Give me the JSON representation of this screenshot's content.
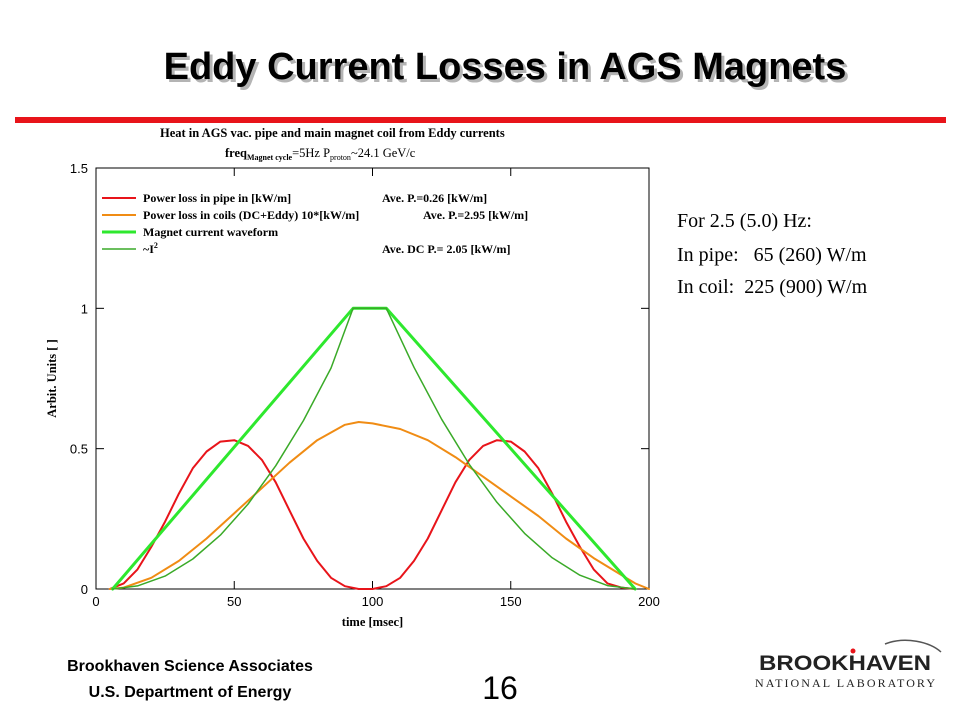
{
  "slide": {
    "title": "Eddy Current Losses in AGS Magnets",
    "notes": [
      "For 2.5 (5.0) Hz:",
      "In pipe:   65 (260) W/m",
      "In coil:  225 (900) W/m"
    ],
    "footer_org": "Brookhaven Science Associates",
    "footer_dept": "U.S. Department of Energy",
    "page_number": "16",
    "logo": {
      "line1": "BROOKHAVEN",
      "line2": "NATIONAL LABORATORY",
      "accent": "#e8141a"
    }
  },
  "colors": {
    "accent": "#e8141a",
    "title_shadow": "#b4b4b4"
  },
  "chart_data": {
    "type": "line",
    "title_line1": "Heat in AGS vac. pipe and main magnet coil from Eddy currents",
    "title_line2": {
      "prefix": "freq",
      "sub1": "Magnet cycle",
      "mid": "=5Hz  P",
      "sub2": "proton",
      "suffix": "~24.1 GeV/c"
    },
    "xlabel": "time [msec]",
    "ylabel": "Arbit. Units [ ]",
    "xlim": [
      0,
      200
    ],
    "ylim": [
      0,
      1.5
    ],
    "xticks": [
      0,
      50,
      100,
      150,
      200
    ],
    "yticks": [
      0,
      0.5,
      1,
      1.5
    ],
    "ytick_labels": [
      "0",
      "0.5",
      "1",
      "1.5"
    ],
    "grid": false,
    "legend_position": "top-left",
    "series": [
      {
        "name": "Power loss in pipe in [kW/m]",
        "legend_value": "Ave. P.=0.26 [kW/m]",
        "color": "#e8141a",
        "width": 2,
        "x": [
          5,
          10,
          15,
          20,
          25,
          30,
          35,
          40,
          45,
          50,
          55,
          60,
          65,
          70,
          75,
          80,
          85,
          90,
          95,
          100,
          105,
          110,
          115,
          120,
          125,
          130,
          135,
          140,
          145,
          150,
          155,
          160,
          165,
          170,
          175,
          180,
          185,
          190,
          195
        ],
        "y": [
          0,
          0.02,
          0.07,
          0.15,
          0.24,
          0.34,
          0.43,
          0.49,
          0.525,
          0.53,
          0.51,
          0.46,
          0.38,
          0.28,
          0.18,
          0.1,
          0.04,
          0.01,
          0,
          0,
          0.01,
          0.04,
          0.1,
          0.18,
          0.28,
          0.38,
          0.46,
          0.51,
          0.53,
          0.525,
          0.49,
          0.43,
          0.34,
          0.24,
          0.15,
          0.07,
          0.02,
          0.005,
          0
        ]
      },
      {
        "name": "Power loss in coils (DC+Eddy) 10*[kW/m]",
        "legend_value": "Ave. P.=2.95 [kW/m]",
        "color": "#f08c14",
        "width": 2,
        "x": [
          5,
          10,
          20,
          30,
          40,
          50,
          60,
          70,
          80,
          90,
          95,
          100,
          110,
          120,
          130,
          140,
          150,
          160,
          170,
          180,
          190,
          195,
          200
        ],
        "y": [
          0,
          0.005,
          0.04,
          0.1,
          0.18,
          0.27,
          0.36,
          0.45,
          0.53,
          0.585,
          0.595,
          0.59,
          0.57,
          0.53,
          0.47,
          0.4,
          0.33,
          0.26,
          0.18,
          0.11,
          0.05,
          0.02,
          0
        ]
      },
      {
        "name": "Magnet current waveform",
        "legend_value": "",
        "color": "#2ee82e",
        "width": 3,
        "x": [
          6,
          93,
          105,
          195
        ],
        "y": [
          0,
          1,
          1,
          0
        ]
      },
      {
        "name": "~I",
        "name_sup": "2",
        "legend_value": "Ave. DC P.= 2.05 [kW/m]",
        "color": "#3aaa28",
        "width": 1.5,
        "x": [
          6,
          15,
          25,
          35,
          45,
          55,
          65,
          75,
          85,
          93,
          105,
          115,
          125,
          135,
          145,
          155,
          165,
          175,
          185,
          195
        ],
        "y": [
          0,
          0.011,
          0.046,
          0.107,
          0.192,
          0.303,
          0.439,
          0.6,
          0.787,
          1,
          1,
          0.79,
          0.605,
          0.444,
          0.309,
          0.198,
          0.111,
          0.049,
          0.012,
          0
        ]
      }
    ]
  }
}
